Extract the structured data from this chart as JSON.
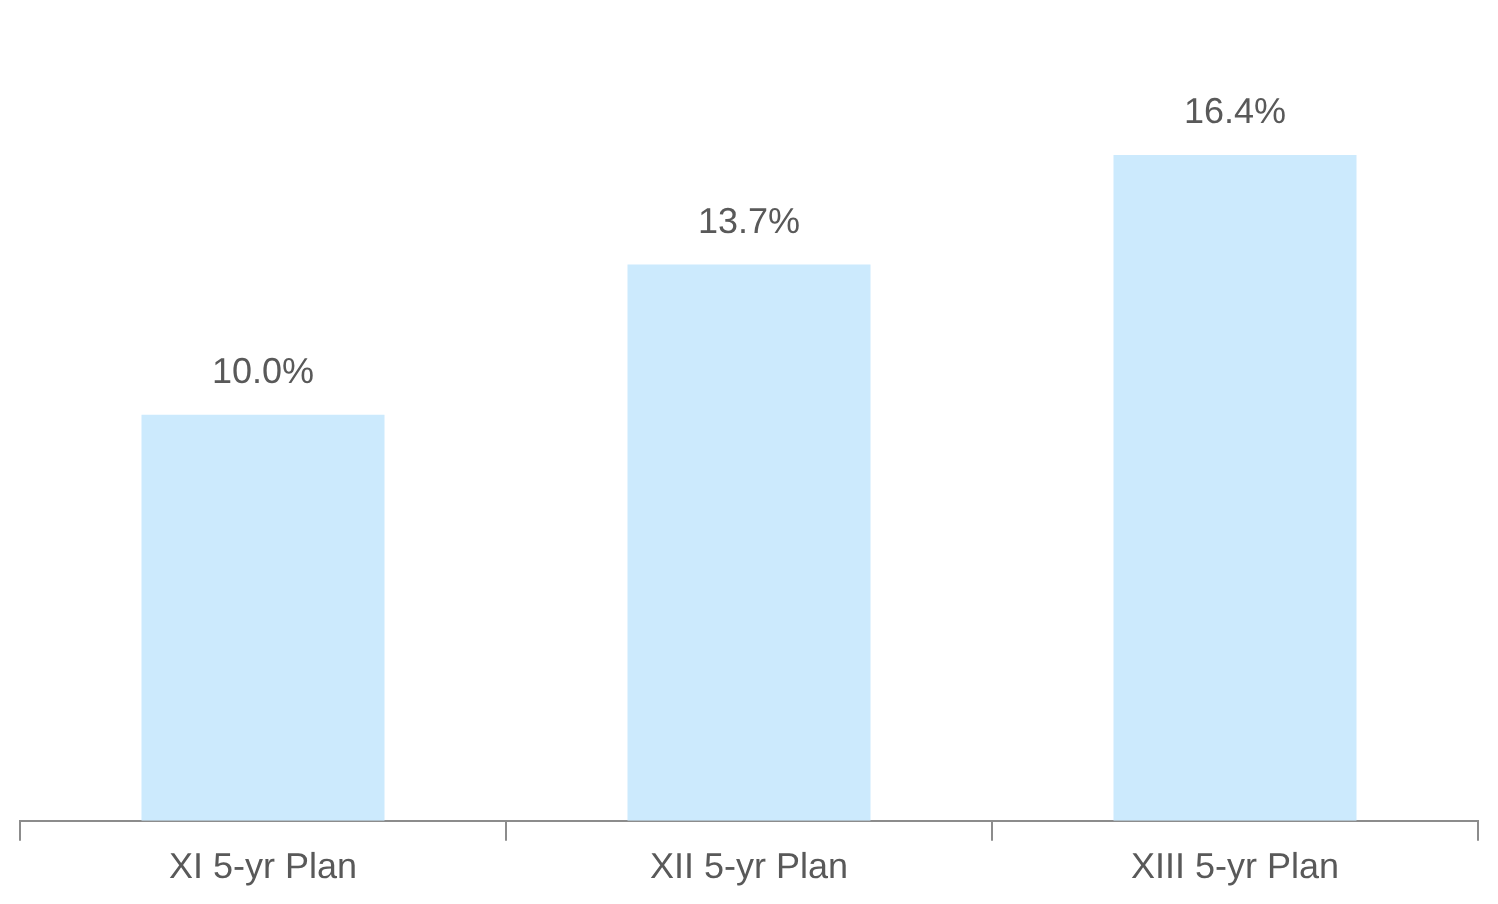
{
  "chart_data": {
    "type": "bar",
    "categories": [
      "XI 5-yr Plan",
      "XII 5-yr Plan",
      "XIII 5-yr Plan"
    ],
    "values": [
      10.0,
      13.7,
      16.4
    ],
    "value_labels": [
      "10.0%",
      "13.7%",
      "16.4%"
    ],
    "color": "#cceafd",
    "grid": false,
    "legend": false
  }
}
